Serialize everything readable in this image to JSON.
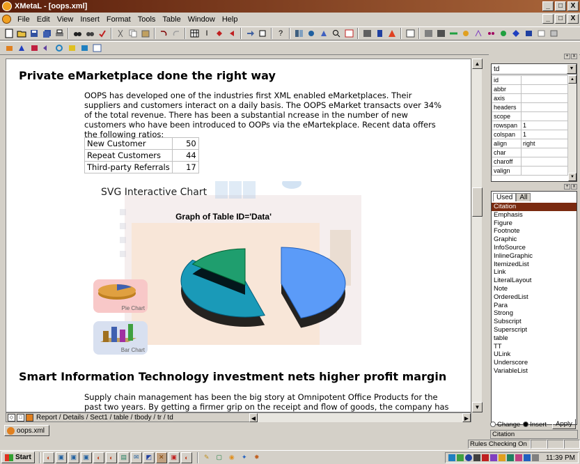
{
  "window": {
    "title": "XMetaL - [oops.xml]",
    "min": "_",
    "max": "□",
    "close": "X"
  },
  "menu": [
    "File",
    "Edit",
    "View",
    "Insert",
    "Format",
    "Tools",
    "Table",
    "Window",
    "Help"
  ],
  "document": {
    "heading1": "Private eMarketplace done the right way",
    "para1": "OOPS has developed one of the industries first XML enabled eMarketplaces. Their suppliers and customers interact on a daily basis. The OOPS eMarket transacts over 34% of the total revenue. There has been a substantial ncrease in the number of new customers who have been introduced to OOPs via the eMartekplace. Recent data offers the following ratios:",
    "table": [
      {
        "label": "New Customer",
        "value": "50"
      },
      {
        "label": "Repeat Customers",
        "value": "44"
      },
      {
        "label": "Third-party Referrals",
        "value": "17"
      }
    ],
    "svg_title": "SVG Interactive Chart",
    "graph_title": "Graph of Table ID='Data'",
    "pie_label": "Pie Chart",
    "bar_label": "Bar Chart",
    "heading2": "Smart Information Technology investment nets higher profit margin",
    "para2": "Supply chain management has been the big story at Omnipotent Office Products for the past two years. By getting a firmer grip on the receipt and flow of goods, the company has"
  },
  "chart_data": {
    "type": "pie",
    "title": "Graph of Table ID='Data'",
    "categories": [
      "New Customer",
      "Repeat Customers",
      "Third-party Referrals"
    ],
    "values": [
      50,
      44,
      17
    ],
    "colors": [
      "#5b9bf8",
      "#1a9ab8",
      "#1f9e6e"
    ]
  },
  "status_path": "Report / Details / Sect1 / table / tbody / tr / td",
  "doc_tab": "oops.xml",
  "attributes": {
    "element": "td",
    "rows": [
      {
        "name": "id",
        "value": ""
      },
      {
        "name": "abbr",
        "value": ""
      },
      {
        "name": "axis",
        "value": ""
      },
      {
        "name": "headers",
        "value": ""
      },
      {
        "name": "scope",
        "value": ""
      },
      {
        "name": "rowspan",
        "value": "1"
      },
      {
        "name": "colspan",
        "value": "1"
      },
      {
        "name": "align",
        "value": "right"
      },
      {
        "name": "char",
        "value": ""
      },
      {
        "name": "charoff",
        "value": ""
      },
      {
        "name": "valign",
        "value": ""
      }
    ]
  },
  "elements": {
    "tab_used": "Used",
    "tab_all": "All",
    "items": [
      "Citation",
      "Emphasis",
      "Figure",
      "Footnote",
      "Graphic",
      "InfoSource",
      "InlineGraphic",
      "ItemizedList",
      "Link",
      "LiteralLayout",
      "Note",
      "OrderedList",
      "Para",
      "Strong",
      "Subscript",
      "Superscript",
      "table",
      "TT",
      "ULink",
      "Underscore",
      "VariableList"
    ],
    "selected": "Citation",
    "change_label": "Change",
    "insert_label": "Insert",
    "apply_label": "Apply",
    "status": "Citation"
  },
  "rules_status": "Rules Checking On",
  "taskbar": {
    "start": "Start",
    "clock": "11:39 PM"
  }
}
